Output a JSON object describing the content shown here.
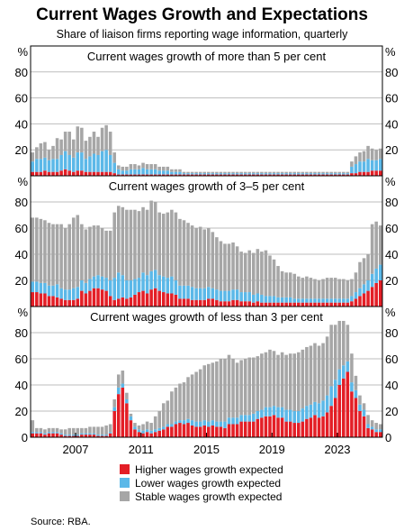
{
  "title": "Current Wages Growth and Expectations",
  "subtitle": "Share of liaison firms reporting wage information, quarterly",
  "source": "Source:   RBA.",
  "unit": "%",
  "colors": {
    "higher": "#e31e26",
    "lower": "#5bb8e8",
    "stable": "#a6a6a6",
    "grid": "#bdbdbd"
  },
  "chart_data": {
    "type": "bar",
    "stacked": true,
    "x_start": "2004 Q2",
    "x_tick_labels": [
      "2007",
      "2011",
      "2015",
      "2019",
      "2023"
    ],
    "y_ticks": [
      0,
      20,
      40,
      60,
      80
    ],
    "ylim": [
      0,
      100
    ],
    "legend": [
      "Higher wages growth expected",
      "Lower wages growth expected",
      "Stable wages growth expected"
    ],
    "panels": [
      {
        "title": "Current wages growth of more than 5 per cent",
        "series": [
          {
            "name": "Higher wages growth expected",
            "values": [
              3,
              3,
              3,
              4,
              3,
              3,
              3,
              4,
              5,
              4,
              3,
              4,
              4,
              3,
              3,
              3,
              3,
              3,
              3,
              3,
              2,
              1,
              1,
              1,
              1,
              1,
              1,
              1,
              1,
              1,
              1,
              1,
              1,
              1,
              1,
              1,
              1,
              1,
              1,
              1,
              1,
              1,
              1,
              1,
              1,
              1,
              1,
              1,
              1,
              1,
              1,
              1,
              1,
              1,
              1,
              1,
              1,
              1,
              1,
              1,
              1,
              1,
              1,
              1,
              1,
              1,
              1,
              1,
              1,
              1,
              1,
              1,
              1,
              1,
              1,
              1,
              1,
              1,
              2,
              2,
              3,
              3,
              3,
              4,
              4,
              4
            ]
          },
          {
            "name": "Lower wages growth expected",
            "values": [
              8,
              10,
              10,
              10,
              9,
              10,
              10,
              12,
              14,
              12,
              11,
              14,
              14,
              10,
              12,
              14,
              13,
              16,
              17,
              13,
              8,
              4,
              3,
              3,
              4,
              4,
              4,
              5,
              4,
              4,
              4,
              3,
              3,
              3,
              2,
              2,
              2,
              1,
              1,
              1,
              1,
              1,
              1,
              1,
              1,
              1,
              1,
              1,
              1,
              1,
              1,
              1,
              1,
              1,
              1,
              1,
              1,
              1,
              1,
              1,
              1,
              1,
              1,
              1,
              1,
              1,
              1,
              1,
              1,
              1,
              1,
              1,
              1,
              1,
              1,
              1,
              1,
              1,
              5,
              7,
              8,
              8,
              10,
              8,
              8,
              9
            ]
          },
          {
            "name": "Stable wages growth expected",
            "values": [
              7,
              9,
              12,
              12,
              8,
              10,
              16,
              12,
              15,
              18,
              14,
              20,
              19,
              14,
              15,
              17,
              14,
              18,
              19,
              18,
              8,
              3,
              3,
              3,
              4,
              4,
              3,
              4,
              4,
              4,
              4,
              3,
              3,
              3,
              2,
              2,
              2,
              1,
              1,
              1,
              1,
              1,
              1,
              1,
              1,
              1,
              1,
              1,
              1,
              1,
              1,
              1,
              1,
              1,
              1,
              1,
              1,
              1,
              1,
              1,
              1,
              1,
              1,
              1,
              1,
              1,
              1,
              1,
              1,
              1,
              1,
              1,
              1,
              1,
              1,
              1,
              1,
              1,
              4,
              6,
              7,
              8,
              10,
              9,
              8,
              8
            ]
          }
        ]
      },
      {
        "title": "Current wages growth of 3–5 per cent",
        "series": [
          {
            "name": "Higher wages growth expected",
            "values": [
              11,
              11,
              10,
              10,
              8,
              8,
              7,
              6,
              5,
              5,
              5,
              6,
              12,
              10,
              12,
              14,
              14,
              13,
              12,
              8,
              5,
              6,
              7,
              6,
              7,
              9,
              11,
              12,
              10,
              13,
              14,
              12,
              11,
              10,
              10,
              9,
              6,
              6,
              6,
              5,
              5,
              5,
              5,
              6,
              6,
              5,
              4,
              4,
              4,
              5,
              5,
              4,
              4,
              4,
              3,
              4,
              3,
              3,
              3,
              3,
              3,
              3,
              3,
              3,
              3,
              3,
              3,
              3,
              3,
              3,
              3,
              3,
              3,
              3,
              3,
              3,
              3,
              3,
              4,
              6,
              8,
              10,
              12,
              15,
              18,
              20
            ]
          },
          {
            "name": "Lower wages growth expected",
            "values": [
              8,
              8,
              8,
              8,
              8,
              8,
              10,
              8,
              8,
              8,
              9,
              9,
              8,
              8,
              9,
              9,
              10,
              10,
              10,
              12,
              17,
              20,
              17,
              14,
              13,
              12,
              11,
              14,
              14,
              14,
              14,
              12,
              12,
              12,
              13,
              11,
              10,
              10,
              10,
              10,
              9,
              9,
              9,
              9,
              8,
              8,
              8,
              8,
              8,
              8,
              8,
              7,
              7,
              7,
              6,
              6,
              6,
              5,
              5,
              5,
              4,
              4,
              4,
              4,
              3,
              3,
              3,
              3,
              3,
              3,
              3,
              3,
              3,
              3,
              3,
              3,
              3,
              3,
              4,
              5,
              6,
              7,
              8,
              10,
              11,
              12
            ]
          },
          {
            "name": "Stable wages growth expected",
            "values": [
              49,
              49,
              49,
              48,
              48,
              47,
              46,
              49,
              47,
              50,
              54,
              55,
              43,
              41,
              40,
              39,
              38,
              37,
              36,
              38,
              50,
              51,
              52,
              54,
              54,
              53,
              51,
              50,
              50,
              54,
              52,
              48,
              48,
              50,
              51,
              52,
              51,
              50,
              48,
              47,
              46,
              47,
              45,
              45,
              43,
              40,
              38,
              36,
              36,
              36,
              33,
              31,
              30,
              32,
              32,
              34,
              33,
              35,
              31,
              28,
              24,
              20,
              19,
              19,
              19,
              17,
              16,
              17,
              16,
              15,
              14,
              15,
              16,
              16,
              16,
              15,
              15,
              14,
              13,
              15,
              20,
              20,
              20,
              38,
              36,
              30
            ]
          }
        ]
      },
      {
        "title": "Current wages growth of less than 3 per cent",
        "series": [
          {
            "name": "Higher wages growth expected",
            "values": [
              3,
              3,
              3,
              2,
              3,
              3,
              3,
              2,
              1,
              1,
              1,
              1,
              2,
              2,
              2,
              2,
              1,
              1,
              1,
              3,
              20,
              33,
              38,
              26,
              13,
              6,
              4,
              3,
              4,
              3,
              4,
              5,
              6,
              8,
              8,
              10,
              11,
              10,
              11,
              9,
              8,
              8,
              9,
              8,
              9,
              8,
              8,
              7,
              10,
              10,
              10,
              12,
              12,
              12,
              12,
              14,
              15,
              16,
              16,
              17,
              15,
              15,
              12,
              12,
              11,
              11,
              12,
              14,
              15,
              17,
              15,
              16,
              19,
              24,
              30,
              40,
              45,
              50,
              35,
              30,
              20,
              16,
              7,
              6,
              4,
              4
            ]
          },
          {
            "name": "Lower wages growth expected",
            "values": [
              1,
              1,
              1,
              1,
              1,
              1,
              1,
              1,
              1,
              1,
              1,
              1,
              1,
              1,
              1,
              1,
              1,
              1,
              1,
              1,
              3,
              5,
              3,
              3,
              3,
              2,
              2,
              2,
              2,
              2,
              2,
              2,
              2,
              2,
              2,
              2,
              2,
              3,
              3,
              4,
              4,
              4,
              4,
              4,
              4,
              4,
              4,
              5,
              5,
              5,
              5,
              5,
              5,
              5,
              6,
              6,
              6,
              7,
              7,
              7,
              8,
              8,
              9,
              9,
              9,
              9,
              10,
              10,
              10,
              10,
              11,
              12,
              13,
              15,
              14,
              12,
              10,
              8,
              7,
              6,
              5,
              5,
              3,
              2,
              2,
              2
            ]
          },
          {
            "name": "Stable wages growth expected",
            "values": [
              9,
              3,
              3,
              3,
              3,
              3,
              3,
              3,
              4,
              5,
              5,
              5,
              4,
              4,
              5,
              5,
              6,
              6,
              7,
              6,
              6,
              10,
              10,
              5,
              2,
              3,
              3,
              5,
              6,
              6,
              10,
              13,
              18,
              18,
              25,
              26,
              28,
              29,
              32,
              35,
              38,
              40,
              42,
              44,
              44,
              46,
              48,
              48,
              48,
              45,
              42,
              42,
              43,
              44,
              43,
              42,
              43,
              42,
              44,
              42,
              40,
              42,
              42,
              43,
              44,
              45,
              45,
              45,
              45,
              45,
              44,
              44,
              45,
              47,
              42,
              37,
              34,
              28,
              22,
              11,
              7,
              5,
              7,
              5,
              5,
              4
            ]
          }
        ]
      }
    ]
  }
}
